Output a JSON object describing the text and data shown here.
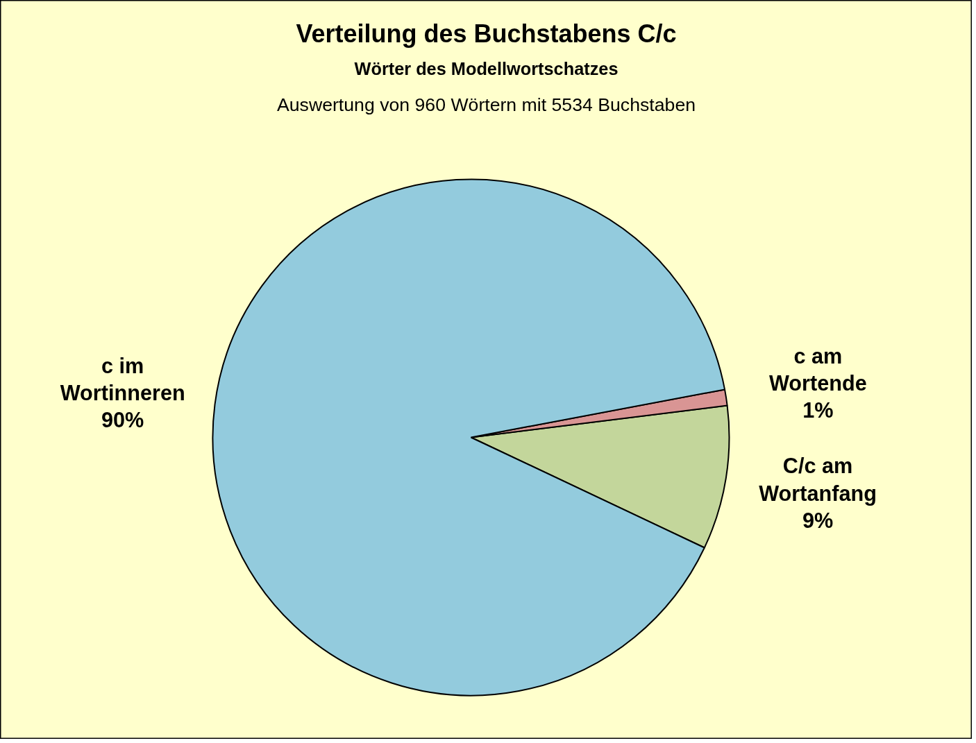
{
  "chart_data": {
    "type": "pie",
    "title": "Verteilung des Buchstabens C/c",
    "subtitle": "Wörter des Modellwortschatzes",
    "annotations": [
      "Auswertung von 960 Wörtern mit 5534 Buchstaben"
    ],
    "categories": [
      "C/c am Wortanfang",
      "c am Wortende",
      "c im Wortinneren"
    ],
    "values": [
      9,
      1,
      90
    ],
    "colors": [
      "#c3d69b",
      "#d99594",
      "#93cbdd"
    ],
    "value_labels": [
      "9%",
      "1%",
      "90%"
    ]
  }
}
